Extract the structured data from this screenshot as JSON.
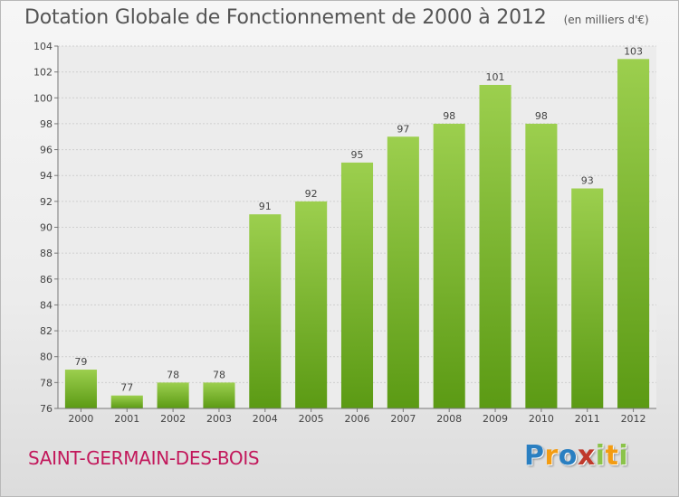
{
  "title": "Dotation Globale de Fonctionnement de 2000 à 2012",
  "subtitle": "(en milliers d'€)",
  "commune": "SAINT-GERMAIN-DES-BOIS",
  "logo": {
    "letters": [
      "P",
      "r",
      "o",
      "x",
      "i",
      "t",
      "i"
    ],
    "colors": [
      "#2a7fc1",
      "#f39c12",
      "#2a7fc1",
      "#c0392b",
      "#8bc34a",
      "#f39c12",
      "#8bc34a"
    ]
  },
  "colors": {
    "bar_top": "#9ccf4e",
    "bar_bottom": "#5b9a14",
    "commune_text": "#c2185b",
    "text": "#555555"
  },
  "chart_data": {
    "type": "bar",
    "title": "Dotation Globale de Fonctionnement de 2000 à 2012",
    "subtitle": "(en milliers d'€)",
    "categories": [
      "2000",
      "2001",
      "2002",
      "2003",
      "2004",
      "2005",
      "2006",
      "2007",
      "2008",
      "2009",
      "2010",
      "2011",
      "2012"
    ],
    "values": [
      79,
      77,
      78,
      78,
      91,
      92,
      95,
      97,
      98,
      101,
      98,
      93,
      103
    ],
    "ylim": [
      76,
      104
    ],
    "yticks": [
      76,
      78,
      80,
      82,
      84,
      86,
      88,
      90,
      92,
      94,
      96,
      98,
      100,
      102,
      104
    ],
    "grid": true,
    "legend": "none"
  }
}
